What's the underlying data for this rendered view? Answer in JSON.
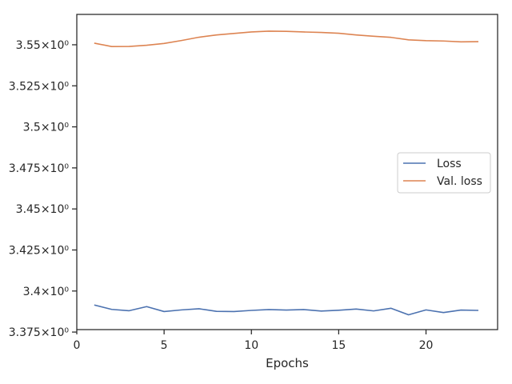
{
  "chart_data": {
    "type": "line",
    "title": "",
    "xlabel": "Epochs",
    "ylabel": "",
    "xlim": [
      0,
      24.1
    ],
    "ylim": [
      3.3765,
      3.5685
    ],
    "x_ticks": [
      0,
      5,
      10,
      15,
      20
    ],
    "y_ticks": [
      {
        "value": 3.375,
        "label": "3.375×10⁰"
      },
      {
        "value": 3.4,
        "label": "3.4×10⁰"
      },
      {
        "value": 3.425,
        "label": "3.425×10⁰"
      },
      {
        "value": 3.45,
        "label": "3.45×10⁰"
      },
      {
        "value": 3.475,
        "label": "3.475×10⁰"
      },
      {
        "value": 3.5,
        "label": "3.5×10⁰"
      },
      {
        "value": 3.525,
        "label": "3.525×10⁰"
      },
      {
        "value": 3.55,
        "label": "3.55×10⁰"
      }
    ],
    "grid": false,
    "legend_position": "center-right",
    "x": [
      1,
      2,
      3,
      4,
      5,
      6,
      7,
      8,
      9,
      10,
      11,
      12,
      13,
      14,
      15,
      16,
      17,
      18,
      19,
      20,
      21,
      22,
      23
    ],
    "series": [
      {
        "name": "Loss",
        "color": "#4c72b0",
        "values": [
          3.3915,
          3.3888,
          3.388,
          3.3905,
          3.3875,
          3.3885,
          3.3892,
          3.3876,
          3.3875,
          3.3882,
          3.3887,
          3.3884,
          3.3887,
          3.3878,
          3.3883,
          3.389,
          3.3879,
          3.3895,
          3.3855,
          3.3885,
          3.3869,
          3.3884,
          3.3882
        ]
      },
      {
        "name": "Val. loss",
        "color": "#dd8452",
        "values": [
          3.551,
          3.5489,
          3.549,
          3.5497,
          3.5508,
          3.5526,
          3.5546,
          3.556,
          3.5569,
          3.5578,
          3.5583,
          3.5582,
          3.5578,
          3.5575,
          3.557,
          3.556,
          3.5552,
          3.5545,
          3.553,
          3.5525,
          3.5523,
          3.5518,
          3.5519
        ]
      }
    ]
  }
}
